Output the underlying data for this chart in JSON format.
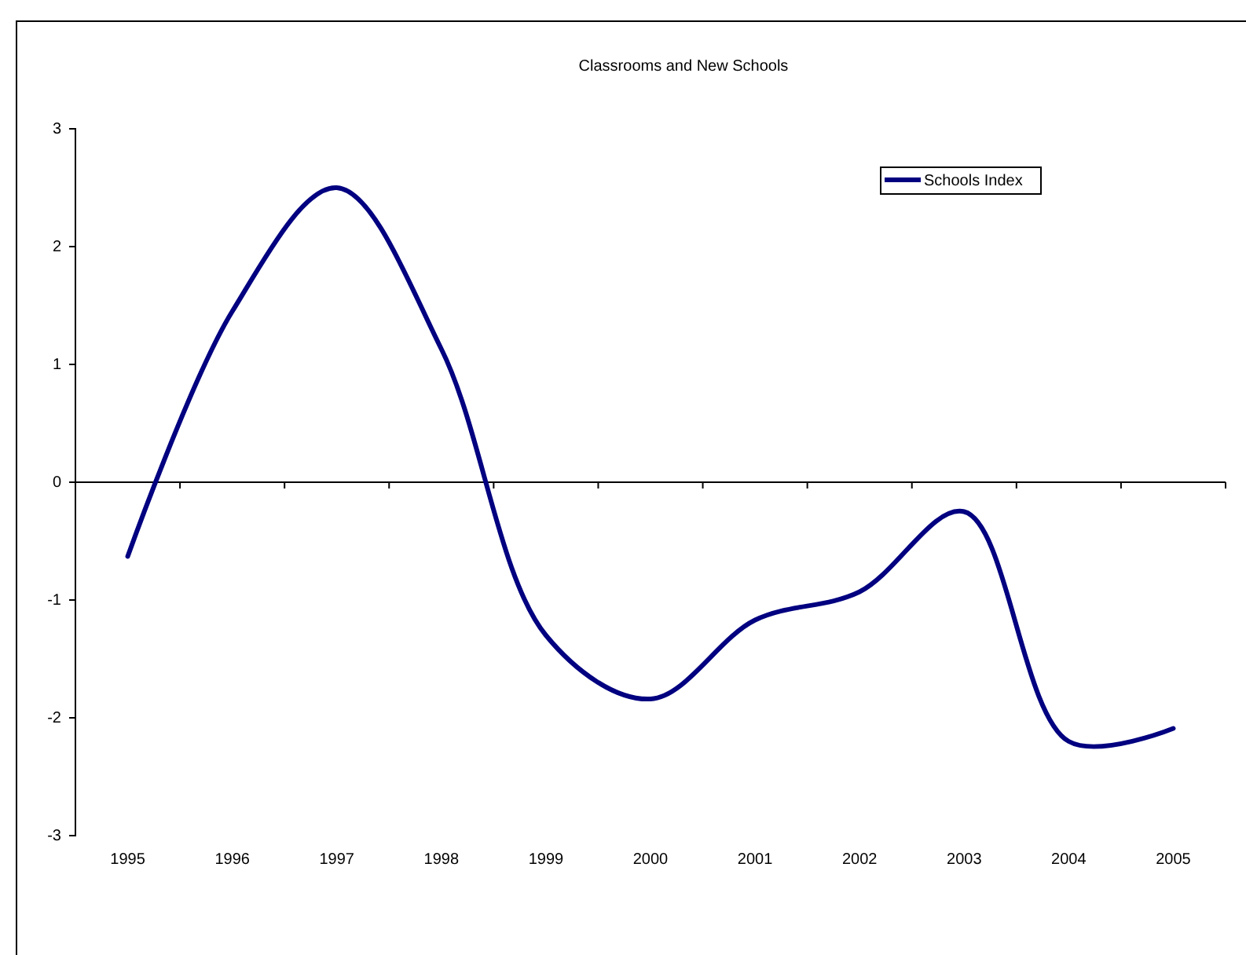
{
  "chart_data": {
    "type": "line",
    "title": "Classrooms and New Schools",
    "categories": [
      "1995",
      "1996",
      "1997",
      "1998",
      "1999",
      "2000",
      "2001",
      "2002",
      "2003",
      "2004",
      "2005"
    ],
    "series": [
      {
        "name": "Schools Index",
        "color": "#000080",
        "values": [
          -0.63,
          1.45,
          2.5,
          1.13,
          -1.3,
          -1.84,
          -1.17,
          -0.93,
          -0.25,
          -2.2,
          -2.09
        ]
      }
    ],
    "ylim": [
      -3,
      3
    ],
    "yticks": [
      -3,
      -2,
      -1,
      0,
      1,
      2,
      3
    ],
    "grid": false,
    "legend": "top right",
    "line_style": "solid",
    "ref_lines": [
      {
        "axis": "y",
        "value": 0,
        "color": "#000000"
      }
    ]
  }
}
